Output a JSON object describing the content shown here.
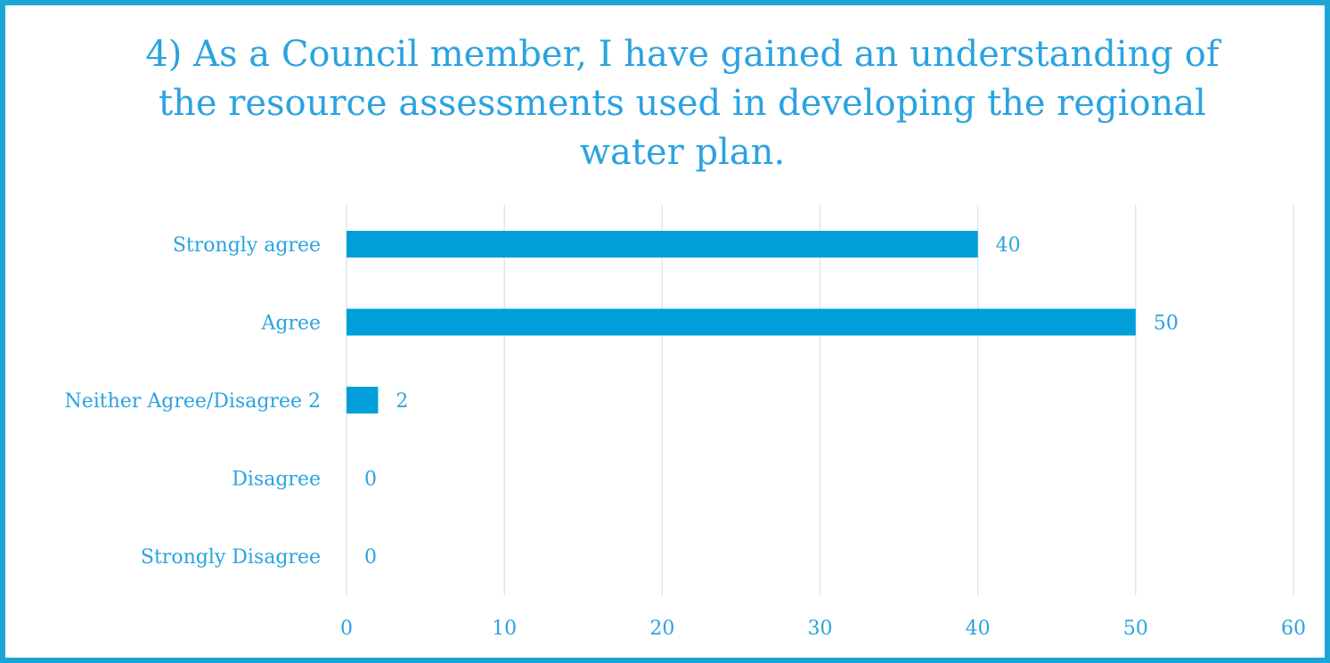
{
  "chart_data": {
    "type": "bar",
    "orientation": "horizontal",
    "title_lines": [
      "4)  As a Council member, I have gained an understanding of",
      "the resource assessments used in developing the regional",
      "water plan."
    ],
    "categories": [
      "Strongly agree",
      "Agree",
      "Neither Agree/Disagree 2",
      "Disagree",
      "Strongly Disagree"
    ],
    "values": [
      40,
      50,
      2,
      0,
      0
    ],
    "data_labels": [
      "40",
      "50",
      "2",
      "0",
      "0"
    ],
    "xlim": [
      0,
      60
    ],
    "xticks": [
      "0",
      "10",
      "20",
      "30",
      "40",
      "50",
      "60"
    ],
    "grid": "vertical",
    "legend": "none",
    "colors": {
      "bar": "#009fd9",
      "text": "#2aa3e0",
      "grid": "#d4e8f6",
      "border": "#1ca6d8"
    }
  }
}
